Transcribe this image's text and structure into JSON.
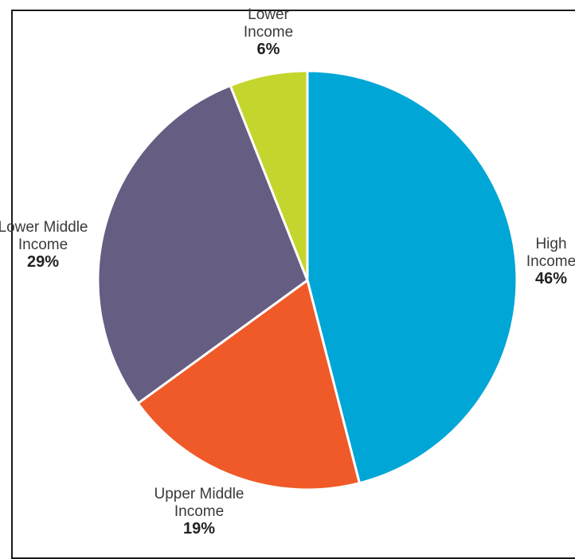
{
  "chart_data": {
    "type": "pie",
    "title": "",
    "slices": [
      {
        "label_lines": [
          "High",
          "Income"
        ],
        "value_label": "46%",
        "value": 46,
        "color": "#00a6d6"
      },
      {
        "label_lines": [
          "Upper Middle",
          "Income"
        ],
        "value_label": "19%",
        "value": 19,
        "color": "#ef5a28"
      },
      {
        "label_lines": [
          "Lower Middle",
          "Income"
        ],
        "value_label": "29%",
        "value": 29,
        "color": "#665d82"
      },
      {
        "label_lines": [
          "Lower",
          "Income"
        ],
        "value_label": "6%",
        "value": 6,
        "color": "#c4d52d"
      }
    ]
  }
}
